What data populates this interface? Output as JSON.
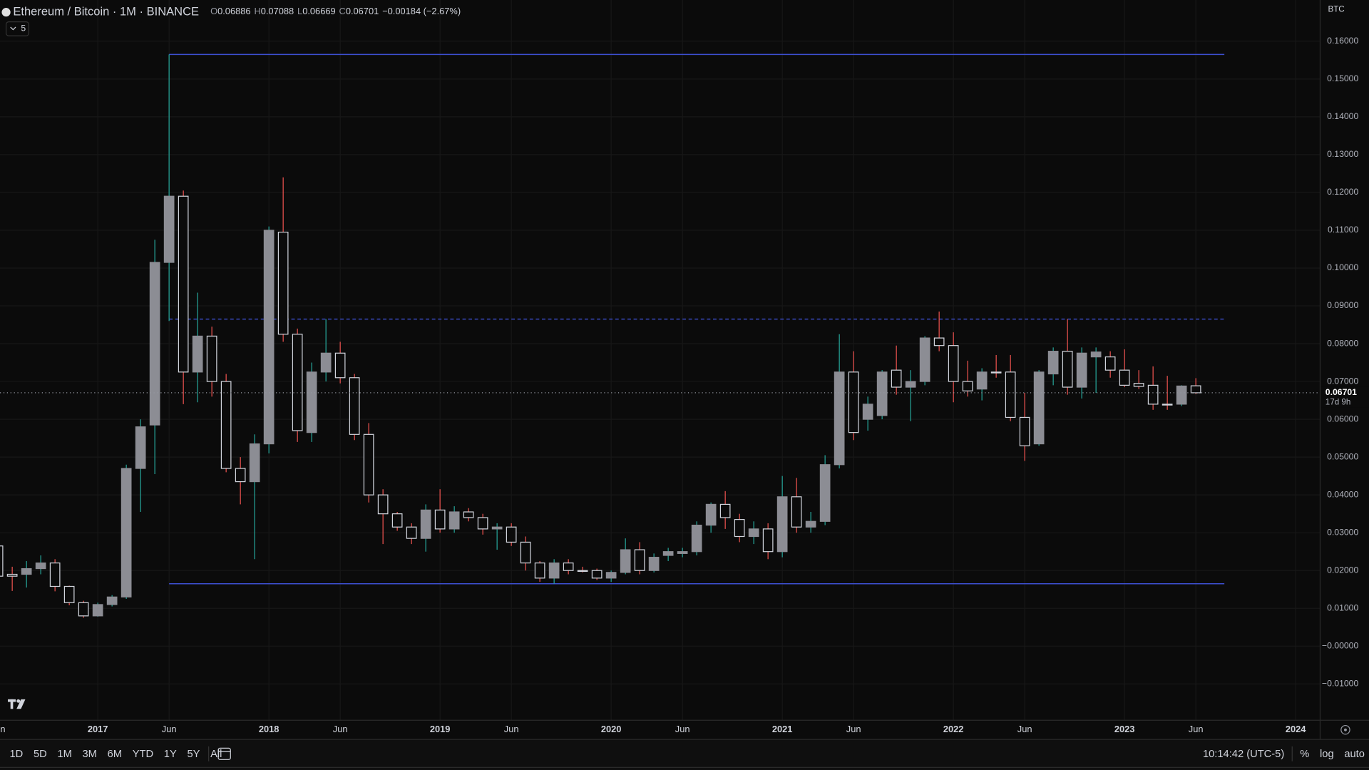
{
  "header": {
    "symbol": "Ethereum / Bitcoin · 1M · BINANCE",
    "ohlc": [
      {
        "label": "O",
        "value": "0.06886"
      },
      {
        "label": "H",
        "value": "0.07088"
      },
      {
        "label": "L",
        "value": "0.06669"
      },
      {
        "label": "C",
        "value": "0.06701"
      }
    ],
    "change": "−0.00184 (−2.67%)",
    "indicator_toggle": "5",
    "currency": "BTC",
    "countdown": "17d 9h"
  },
  "toolbar": {
    "ranges": [
      "1D",
      "5D",
      "1M",
      "3M",
      "6M",
      "YTD",
      "1Y",
      "5Y",
      "All"
    ],
    "clock": "10:14:42 (UTC-5)",
    "options": [
      "%",
      "log",
      "auto"
    ]
  },
  "chart_data": {
    "type": "candlestick",
    "x": [
      "2016-06",
      "2016-07",
      "2016-08",
      "2016-09",
      "2016-10",
      "2016-11",
      "2016-12",
      "2017-01",
      "2017-02",
      "2017-03",
      "2017-04",
      "2017-05",
      "2017-06",
      "2017-07",
      "2017-08",
      "2017-09",
      "2017-10",
      "2017-11",
      "2017-12",
      "2018-01",
      "2018-02",
      "2018-03",
      "2018-04",
      "2018-05",
      "2018-06",
      "2018-07",
      "2018-08",
      "2018-09",
      "2018-10",
      "2018-11",
      "2018-12",
      "2019-01",
      "2019-02",
      "2019-03",
      "2019-04",
      "2019-05",
      "2019-06",
      "2019-07",
      "2019-08",
      "2019-09",
      "2019-10",
      "2019-11",
      "2019-12",
      "2020-01",
      "2020-02",
      "2020-03",
      "2020-04",
      "2020-05",
      "2020-06",
      "2020-07",
      "2020-08",
      "2020-09",
      "2020-10",
      "2020-11",
      "2020-12",
      "2021-01",
      "2021-02",
      "2021-03",
      "2021-04",
      "2021-05",
      "2021-06",
      "2021-07",
      "2021-08",
      "2021-09",
      "2021-10",
      "2021-11",
      "2021-12",
      "2022-01",
      "2022-02",
      "2022-03",
      "2022-04",
      "2022-05",
      "2022-06",
      "2022-07",
      "2022-08",
      "2022-09",
      "2022-10",
      "2022-11",
      "2022-12",
      "2023-01",
      "2023-02",
      "2023-03",
      "2023-04",
      "2023-05",
      "2023-06"
    ],
    "open": [
      0.0265,
      0.019,
      0.019,
      0.0205,
      0.022,
      0.0158,
      0.0115,
      0.008,
      0.011,
      0.013,
      0.047,
      0.0585,
      0.1015,
      0.119,
      0.0725,
      0.082,
      0.07,
      0.047,
      0.0435,
      0.0535,
      0.1095,
      0.0825,
      0.0565,
      0.0725,
      0.0775,
      0.071,
      0.056,
      0.04,
      0.035,
      0.0315,
      0.0285,
      0.036,
      0.031,
      0.0355,
      0.034,
      0.031,
      0.0315,
      0.0275,
      0.022,
      0.018,
      0.022,
      0.02,
      0.02,
      0.018,
      0.0195,
      0.0255,
      0.02,
      0.024,
      0.0245,
      0.025,
      0.032,
      0.0375,
      0.0335,
      0.029,
      0.031,
      0.025,
      0.0395,
      0.0315,
      0.033,
      0.048,
      0.0725,
      0.06,
      0.061,
      0.073,
      0.0685,
      0.07,
      0.0815,
      0.0795,
      0.07,
      0.068,
      0.0725,
      0.0725,
      0.0605,
      0.0535,
      0.072,
      0.078,
      0.0685,
      0.0765,
      0.0765,
      0.073,
      0.0695,
      0.069,
      0.064,
      0.064,
      0.06886
    ],
    "high": [
      0.028,
      0.021,
      0.0225,
      0.024,
      0.023,
      0.016,
      0.012,
      0.0115,
      0.0135,
      0.048,
      0.06,
      0.1075,
      0.1565,
      0.1205,
      0.0935,
      0.0845,
      0.072,
      0.05,
      0.056,
      0.111,
      0.124,
      0.084,
      0.075,
      0.0865,
      0.0805,
      0.072,
      0.059,
      0.0415,
      0.0355,
      0.0325,
      0.0375,
      0.0415,
      0.037,
      0.0365,
      0.035,
      0.0325,
      0.0325,
      0.029,
      0.0225,
      0.023,
      0.023,
      0.021,
      0.0205,
      0.02,
      0.0285,
      0.0275,
      0.0245,
      0.026,
      0.026,
      0.033,
      0.038,
      0.041,
      0.035,
      0.033,
      0.0325,
      0.045,
      0.0445,
      0.0355,
      0.0505,
      0.0825,
      0.078,
      0.066,
      0.073,
      0.0795,
      0.073,
      0.082,
      0.0885,
      0.083,
      0.0755,
      0.0735,
      0.077,
      0.077,
      0.067,
      0.073,
      0.079,
      0.0865,
      0.079,
      0.079,
      0.078,
      0.0785,
      0.073,
      0.074,
      0.0715,
      0.069,
      0.07088
    ],
    "low": [
      0.017,
      0.0146,
      0.0155,
      0.019,
      0.0145,
      0.0108,
      0.0075,
      0.0078,
      0.0105,
      0.0125,
      0.0355,
      0.0455,
      0.086,
      0.064,
      0.0645,
      0.066,
      0.046,
      0.0375,
      0.023,
      0.051,
      0.0805,
      0.054,
      0.054,
      0.07,
      0.0695,
      0.0545,
      0.038,
      0.027,
      0.0305,
      0.027,
      0.025,
      0.03,
      0.03,
      0.033,
      0.0295,
      0.0255,
      0.0265,
      0.02,
      0.017,
      0.0165,
      0.019,
      0.0195,
      0.0175,
      0.017,
      0.019,
      0.019,
      0.0195,
      0.0225,
      0.0235,
      0.024,
      0.03,
      0.031,
      0.0275,
      0.027,
      0.023,
      0.0235,
      0.03,
      0.03,
      0.032,
      0.047,
      0.0545,
      0.057,
      0.06,
      0.0665,
      0.0595,
      0.069,
      0.078,
      0.0645,
      0.066,
      0.065,
      0.071,
      0.0595,
      0.049,
      0.053,
      0.069,
      0.0665,
      0.0655,
      0.067,
      0.071,
      0.0685,
      0.068,
      0.0625,
      0.0625,
      0.0635,
      0.06669
    ],
    "close": [
      0.0185,
      0.0185,
      0.0205,
      0.022,
      0.0158,
      0.0115,
      0.008,
      0.011,
      0.013,
      0.047,
      0.058,
      0.1015,
      0.119,
      0.0725,
      0.082,
      0.07,
      0.047,
      0.0435,
      0.0535,
      0.11,
      0.0825,
      0.057,
      0.0725,
      0.0775,
      0.071,
      0.056,
      0.04,
      0.035,
      0.0315,
      0.0285,
      0.036,
      0.031,
      0.0355,
      0.034,
      0.031,
      0.0315,
      0.0275,
      0.022,
      0.018,
      0.022,
      0.02,
      0.0198,
      0.018,
      0.0195,
      0.0255,
      0.02,
      0.0235,
      0.025,
      0.025,
      0.032,
      0.0375,
      0.034,
      0.029,
      0.031,
      0.025,
      0.0395,
      0.0315,
      0.033,
      0.048,
      0.0725,
      0.0565,
      0.064,
      0.0725,
      0.0685,
      0.07,
      0.0815,
      0.0795,
      0.07,
      0.0675,
      0.0725,
      0.0723,
      0.0605,
      0.053,
      0.0725,
      0.078,
      0.0685,
      0.0775,
      0.0778,
      0.073,
      0.069,
      0.0687,
      0.064,
      0.0638,
      0.0688,
      0.06701
    ],
    "up_color": "#8c8d94",
    "up_wick": "#26a69a",
    "down_border": "#d1d4dc",
    "down_wick": "#ef5350",
    "levels": [
      {
        "value": 0.1565,
        "style": "solid",
        "from": "2017-06",
        "to": "2023-08"
      },
      {
        "value": 0.0865,
        "style": "dashed",
        "from": "2017-06",
        "to": "2023-08"
      },
      {
        "value": 0.0165,
        "style": "solid",
        "from": "2017-06",
        "to": "2023-08"
      }
    ],
    "level_color": "#3d4fd1",
    "ylim": [
      -0.0196,
      0.1709
    ],
    "yticks": [
      {
        "value": 0.16,
        "label": "0.16000"
      },
      {
        "value": 0.15,
        "label": "0.15000"
      },
      {
        "value": 0.14,
        "label": "0.14000"
      },
      {
        "value": 0.13,
        "label": "0.13000"
      },
      {
        "value": 0.12,
        "label": "0.12000"
      },
      {
        "value": 0.11,
        "label": "0.11000"
      },
      {
        "value": 0.1,
        "label": "0.10000"
      },
      {
        "value": 0.09,
        "label": "0.09000"
      },
      {
        "value": 0.08,
        "label": "0.08000"
      },
      {
        "value": 0.07,
        "label": "0.07000"
      },
      {
        "value": 0.06,
        "label": "0.06000"
      },
      {
        "value": 0.05,
        "label": "0.05000"
      },
      {
        "value": 0.04,
        "label": "0.04000"
      },
      {
        "value": 0.03,
        "label": "0.03000"
      },
      {
        "value": 0.02,
        "label": "0.02000"
      },
      {
        "value": 0.01,
        "label": "0.01000"
      },
      {
        "value": 0,
        "label": "−0.00000"
      },
      {
        "value": -0.01,
        "label": "−0.01000"
      }
    ],
    "xlim": [
      "2016-06",
      "2024-01"
    ],
    "xticks": [
      {
        "value": "2016-06",
        "label": "Jun"
      },
      {
        "value": "2017-01",
        "label": "2017"
      },
      {
        "value": "2017-06",
        "label": "Jun"
      },
      {
        "value": "2018-01",
        "label": "2018"
      },
      {
        "value": "2018-06",
        "label": "Jun"
      },
      {
        "value": "2019-01",
        "label": "2019"
      },
      {
        "value": "2019-06",
        "label": "Jun"
      },
      {
        "value": "2020-01",
        "label": "2020"
      },
      {
        "value": "2020-06",
        "label": "Jun"
      },
      {
        "value": "2021-01",
        "label": "2021"
      },
      {
        "value": "2021-06",
        "label": "Jun"
      },
      {
        "value": "2022-01",
        "label": "2022"
      },
      {
        "value": "2022-06",
        "label": "Jun"
      },
      {
        "value": "2023-01",
        "label": "2023"
      },
      {
        "value": "2023-06",
        "label": "Jun"
      },
      {
        "value": "2024-01",
        "label": "2024"
      }
    ],
    "grid": true
  }
}
